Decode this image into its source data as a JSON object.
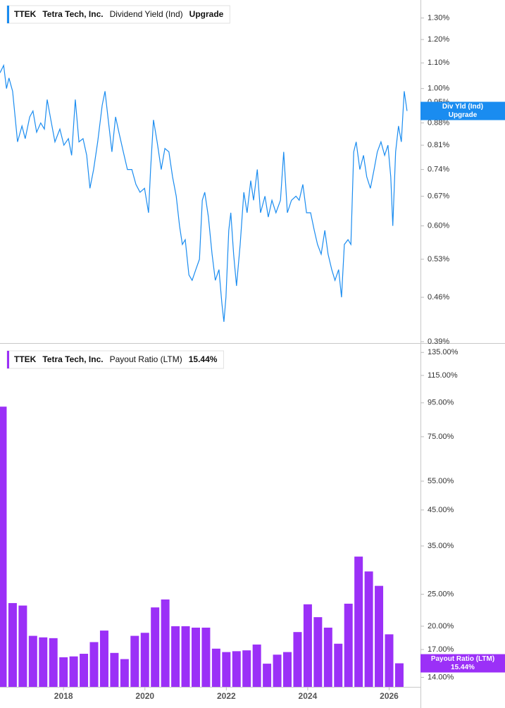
{
  "chart_data": [
    {
      "type": "line",
      "ticker": "TTEK",
      "company": "Tetra Tech, Inc.",
      "legend_value": "Upgrade",
      "marker_label": "Div Yld (Ind)",
      "log_scale": true,
      "xlim": [
        2016.44,
        2026.77
      ],
      "ylim": [
        0.388,
        1.39
      ],
      "yticks": [
        {
          "value": 0.39,
          "label": "0.39%"
        },
        {
          "value": 0.46,
          "label": "0.46%"
        },
        {
          "value": 0.53,
          "label": "0.53%"
        },
        {
          "value": 0.6,
          "label": "0.60%"
        },
        {
          "value": 0.67,
          "label": "0.67%"
        },
        {
          "value": 0.74,
          "label": "0.74%"
        },
        {
          "value": 0.81,
          "label": "0.81%"
        },
        {
          "value": 0.88,
          "label": "0.88%"
        },
        {
          "value": 0.95,
          "label": "0.95%"
        },
        {
          "value": 1.0,
          "label": "1.00%"
        },
        {
          "value": 1.1,
          "label": "1.10%"
        },
        {
          "value": 1.2,
          "label": "1.20%"
        },
        {
          "value": 1.3,
          "label": "1.30%"
        }
      ],
      "series": [
        {
          "name": "Dividend Yield (Ind)",
          "color": "#1a8cf0",
          "x": [
            2016.44,
            2016.53,
            2016.6,
            2016.66,
            2016.75,
            2016.87,
            2016.98,
            2017.06,
            2017.17,
            2017.25,
            2017.34,
            2017.44,
            2017.53,
            2017.6,
            2017.69,
            2017.79,
            2017.91,
            2018.01,
            2018.12,
            2018.2,
            2018.29,
            2018.38,
            2018.48,
            2018.57,
            2018.65,
            2018.74,
            2018.84,
            2018.95,
            2019.02,
            2019.1,
            2019.19,
            2019.28,
            2019.36,
            2019.47,
            2019.57,
            2019.68,
            2019.78,
            2019.88,
            2019.99,
            2020.09,
            2020.14,
            2020.21,
            2020.3,
            2020.4,
            2020.49,
            2020.59,
            2020.68,
            2020.77,
            2020.85,
            2020.92,
            2020.99,
            2021.08,
            2021.16,
            2021.25,
            2021.34,
            2021.41,
            2021.47,
            2021.56,
            2021.65,
            2021.73,
            2021.82,
            2021.89,
            2021.94,
            2021.99,
            2022.06,
            2022.11,
            2022.18,
            2022.25,
            2022.34,
            2022.43,
            2022.51,
            2022.6,
            2022.67,
            2022.76,
            2022.84,
            2022.95,
            2023.03,
            2023.12,
            2023.22,
            2023.33,
            2023.41,
            2023.5,
            2023.6,
            2023.71,
            2023.79,
            2023.88,
            2023.97,
            2024.07,
            2024.16,
            2024.24,
            2024.33,
            2024.42,
            2024.5,
            2024.59,
            2024.67,
            2024.76,
            2024.83,
            2024.9,
            2024.99,
            2025.06,
            2025.13,
            2025.19,
            2025.28,
            2025.37,
            2025.45,
            2025.54,
            2025.63,
            2025.71,
            2025.8,
            2025.89,
            2025.97,
            2026.04,
            2026.09,
            2026.16,
            2026.23,
            2026.3,
            2026.37,
            2026.44
          ],
          "values": [
            1.06,
            1.09,
            1.0,
            1.04,
            0.99,
            0.82,
            0.87,
            0.83,
            0.9,
            0.92,
            0.85,
            0.88,
            0.86,
            0.96,
            0.89,
            0.82,
            0.86,
            0.81,
            0.83,
            0.78,
            0.96,
            0.82,
            0.83,
            0.78,
            0.69,
            0.74,
            0.82,
            0.94,
            0.99,
            0.89,
            0.79,
            0.9,
            0.85,
            0.79,
            0.74,
            0.74,
            0.7,
            0.68,
            0.69,
            0.63,
            0.74,
            0.89,
            0.82,
            0.74,
            0.8,
            0.79,
            0.72,
            0.67,
            0.6,
            0.56,
            0.57,
            0.5,
            0.49,
            0.51,
            0.53,
            0.66,
            0.68,
            0.62,
            0.54,
            0.49,
            0.51,
            0.45,
            0.42,
            0.46,
            0.59,
            0.63,
            0.54,
            0.48,
            0.56,
            0.68,
            0.63,
            0.71,
            0.66,
            0.74,
            0.63,
            0.67,
            0.62,
            0.66,
            0.63,
            0.66,
            0.79,
            0.63,
            0.66,
            0.67,
            0.66,
            0.7,
            0.63,
            0.63,
            0.59,
            0.56,
            0.54,
            0.59,
            0.54,
            0.51,
            0.49,
            0.51,
            0.46,
            0.56,
            0.57,
            0.56,
            0.79,
            0.82,
            0.74,
            0.78,
            0.72,
            0.69,
            0.74,
            0.79,
            0.82,
            0.78,
            0.81,
            0.72,
            0.6,
            0.79,
            0.87,
            0.82,
            0.99,
            0.92
          ]
        }
      ]
    },
    {
      "type": "bar",
      "ticker": "TTEK",
      "company": "Tetra Tech, Inc.",
      "legend_value": "15.44%",
      "log_scale": true,
      "xlim": [
        2016.44,
        2026.77
      ],
      "xticks": [
        2018,
        2020,
        2022,
        2024,
        2026
      ],
      "ylim": [
        13.1,
        142
      ],
      "yticks": [
        {
          "value": 14,
          "label": "14.00%"
        },
        {
          "value": 17,
          "label": "17.00%"
        },
        {
          "value": 20,
          "label": "20.00%"
        },
        {
          "value": 25,
          "label": "25.00%"
        },
        {
          "value": 35,
          "label": "35.00%"
        },
        {
          "value": 45,
          "label": "45.00%"
        },
        {
          "value": 55,
          "label": "55.00%"
        },
        {
          "value": 75,
          "label": "75.00%"
        },
        {
          "value": 95,
          "label": "95.00%"
        },
        {
          "value": 115,
          "label": "115.00%"
        },
        {
          "value": 135,
          "label": "135.00%"
        }
      ],
      "series": [
        {
          "name": "Payout Ratio (LTM)",
          "color": "#9b30f7",
          "x": [
            2016.5,
            2016.75,
            2017.0,
            2017.25,
            2017.5,
            2017.75,
            2018.0,
            2018.25,
            2018.5,
            2018.75,
            2019.0,
            2019.25,
            2019.5,
            2019.75,
            2020.0,
            2020.25,
            2020.5,
            2020.75,
            2021.0,
            2021.25,
            2021.5,
            2021.75,
            2022.0,
            2022.25,
            2022.5,
            2022.75,
            2023.0,
            2023.25,
            2023.5,
            2023.75,
            2024.0,
            2024.25,
            2024.5,
            2024.75,
            2025.0,
            2025.25,
            2025.5,
            2025.75,
            2026.0,
            2026.25
          ],
          "values": [
            92.5,
            23.5,
            23.1,
            18.7,
            18.5,
            18.4,
            16.1,
            16.2,
            16.5,
            17.9,
            19.4,
            16.6,
            15.9,
            18.7,
            19.1,
            22.8,
            24.1,
            20.0,
            20.0,
            19.8,
            19.8,
            17.1,
            16.7,
            16.8,
            16.9,
            17.6,
            15.4,
            16.4,
            16.7,
            19.2,
            23.3,
            21.3,
            19.8,
            17.7,
            23.4,
            32.5,
            29.3,
            26.5,
            18.9,
            15.44
          ]
        }
      ]
    }
  ]
}
